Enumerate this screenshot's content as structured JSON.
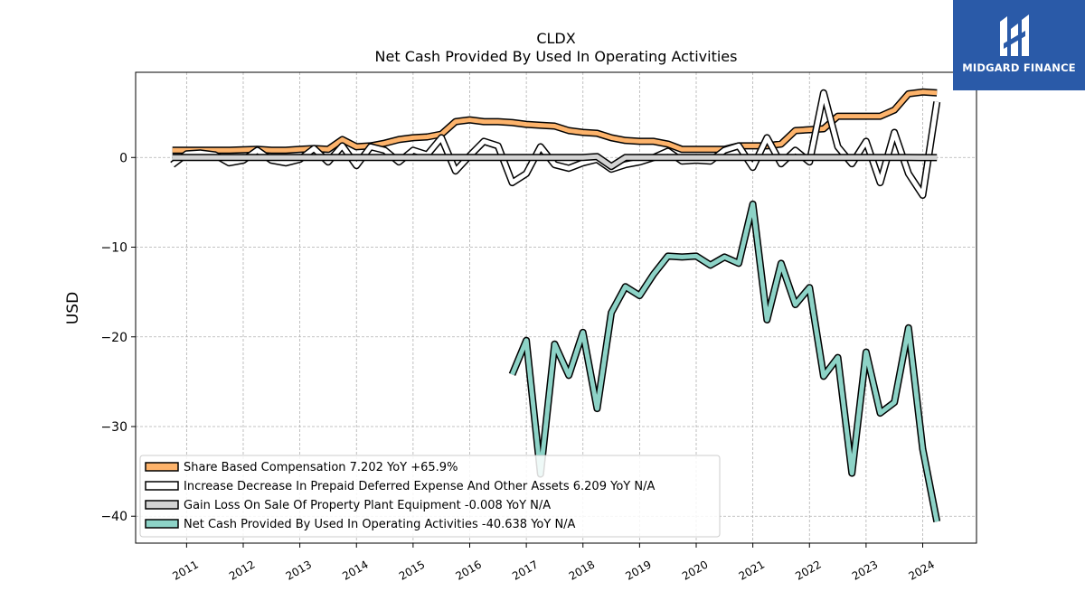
{
  "brand": {
    "name": "MIDGARD FINANCE",
    "bg_color": "#2a5aa8"
  },
  "chart_data": {
    "type": "line",
    "title": "CLDX",
    "subtitle": "Net Cash Provided By Used In Operating Activities",
    "ylabel": "USD",
    "xlabel": "",
    "xlim": [
      2010.1,
      2024.95
    ],
    "ylim": [
      -43,
      9.5
    ],
    "yticks": [
      0,
      -10,
      -20,
      -30,
      -40
    ],
    "xticks": [
      "2011",
      "2012",
      "2013",
      "2014",
      "2015",
      "2016",
      "2017",
      "2018",
      "2019",
      "2020",
      "2021",
      "2022",
      "2023",
      "2024"
    ],
    "grid": true,
    "legend_position": "lower-left",
    "series": [
      {
        "name": "Share Based Compensation",
        "legend": "Share Based Compensation  7.202 YoY +65.9%",
        "color": "#fdb36b",
        "x": [
          2010.75,
          2011.0,
          2011.25,
          2011.5,
          2011.75,
          2012.0,
          2012.25,
          2012.5,
          2012.75,
          2013.0,
          2013.25,
          2013.5,
          2013.75,
          2014.0,
          2014.25,
          2014.5,
          2014.75,
          2015.0,
          2015.25,
          2015.5,
          2015.75,
          2016.0,
          2016.25,
          2016.5,
          2016.75,
          2017.0,
          2017.25,
          2017.5,
          2017.75,
          2018.0,
          2018.25,
          2018.5,
          2018.75,
          2019.0,
          2019.25,
          2019.5,
          2019.75,
          2020.0,
          2020.25,
          2020.5,
          2020.75,
          2021.0,
          2021.25,
          2021.5,
          2021.75,
          2022.0,
          2022.25,
          2022.5,
          2022.75,
          2023.0,
          2023.25,
          2023.5,
          2023.75,
          2024.0,
          2024.25
        ],
        "values": [
          0.8,
          0.8,
          0.8,
          0.8,
          0.8,
          0.85,
          0.9,
          0.8,
          0.8,
          0.9,
          1.0,
          0.9,
          2.0,
          1.2,
          1.3,
          1.6,
          2.0,
          2.2,
          2.3,
          2.6,
          4.0,
          4.2,
          4.0,
          4.0,
          3.9,
          3.7,
          3.6,
          3.5,
          3.0,
          2.8,
          2.7,
          2.2,
          1.9,
          1.8,
          1.8,
          1.5,
          0.9,
          0.9,
          0.9,
          0.9,
          1.3,
          1.3,
          1.3,
          1.5,
          3.0,
          3.1,
          3.2,
          4.6,
          4.6,
          4.6,
          4.6,
          5.3,
          7.1,
          7.3,
          7.2
        ]
      },
      {
        "name": "Increase Decrease In Prepaid Deferred Expense And Other Assets",
        "legend": "Increase Decrease In Prepaid Deferred Expense And Other Assets  6.209 YoY N/A",
        "color": "#ffffff",
        "x": [
          2010.75,
          2011.0,
          2011.25,
          2011.5,
          2011.75,
          2012.0,
          2012.25,
          2012.5,
          2012.75,
          2013.0,
          2013.25,
          2013.5,
          2013.75,
          2014.0,
          2014.25,
          2014.5,
          2014.75,
          2015.0,
          2015.25,
          2015.5,
          2015.75,
          2016.0,
          2016.25,
          2016.5,
          2016.75,
          2017.0,
          2017.25,
          2017.5,
          2017.75,
          2018.0,
          2018.25,
          2018.5,
          2018.75,
          2019.0,
          2019.25,
          2019.5,
          2019.75,
          2020.0,
          2020.25,
          2020.5,
          2020.75,
          2021.0,
          2021.25,
          2021.5,
          2021.75,
          2022.0,
          2022.25,
          2022.5,
          2022.75,
          2023.0,
          2023.25,
          2023.5,
          2023.75,
          2024.0,
          2024.25
        ],
        "values": [
          -0.8,
          0.4,
          0.5,
          0.3,
          -0.6,
          -0.3,
          0.8,
          -0.3,
          -0.6,
          -0.2,
          1.0,
          -0.5,
          1.3,
          -0.9,
          1.2,
          0.8,
          -0.5,
          0.8,
          0.3,
          2.2,
          -1.5,
          0.2,
          1.8,
          1.3,
          -2.8,
          -1.8,
          1.2,
          -0.8,
          -1.2,
          -0.6,
          -0.2,
          -1.3,
          -0.8,
          -0.5,
          0.0,
          0.7,
          -0.4,
          -0.3,
          -0.4,
          0.8,
          1.3,
          -1.1,
          2.2,
          -0.7,
          0.8,
          -0.5,
          7.2,
          1.2,
          -0.7,
          1.8,
          -2.8,
          2.8,
          -1.8,
          -4.2,
          6.2
        ]
      },
      {
        "name": "Gain Loss On Sale Of Property Plant Equipment",
        "legend": "Gain Loss On Sale Of Property Plant Equipment  -0.008 YoY N/A",
        "color": "#d3d3d3",
        "x": [
          2010.75,
          2011.5,
          2012.25,
          2013.0,
          2013.75,
          2014.5,
          2015.25,
          2016.0,
          2016.75,
          2017.5,
          2018.0,
          2018.25,
          2018.5,
          2018.75,
          2019.25,
          2020.0,
          2020.75,
          2021.5,
          2022.25,
          2023.0,
          2023.75,
          2024.25
        ],
        "values": [
          0.0,
          0.0,
          0.0,
          0.0,
          0.0,
          0.0,
          0.0,
          0.0,
          0.0,
          0.0,
          0.0,
          0.1,
          -1.0,
          0.0,
          0.0,
          0.0,
          0.0,
          0.0,
          0.0,
          0.0,
          0.0,
          -0.008
        ]
      },
      {
        "name": "Net Cash Provided By Used In Operating Activities",
        "legend": "Net Cash Provided By Used In Operating Activities  -40.638 YoY N/A",
        "color": "#8dd3c7",
        "x": [
          2016.75,
          2017.0,
          2017.25,
          2017.5,
          2017.75,
          2018.0,
          2018.25,
          2018.5,
          2018.75,
          2019.0,
          2019.25,
          2019.5,
          2019.75,
          2020.0,
          2020.25,
          2020.5,
          2020.75,
          2021.0,
          2021.25,
          2021.5,
          2021.75,
          2022.0,
          2022.25,
          2022.5,
          2022.75,
          2023.0,
          2023.25,
          2023.5,
          2023.75,
          2024.0,
          2024.25
        ],
        "values": [
          -24.2,
          -20.4,
          -35.3,
          -20.8,
          -24.3,
          -19.5,
          -28.0,
          -17.3,
          -14.4,
          -15.4,
          -13.0,
          -11.0,
          -11.1,
          -11.0,
          -12.0,
          -11.1,
          -11.8,
          -5.2,
          -18.1,
          -11.8,
          -16.4,
          -14.5,
          -24.4,
          -22.3,
          -35.2,
          -21.7,
          -28.5,
          -27.3,
          -19.0,
          -32.5,
          -40.6
        ]
      }
    ]
  }
}
